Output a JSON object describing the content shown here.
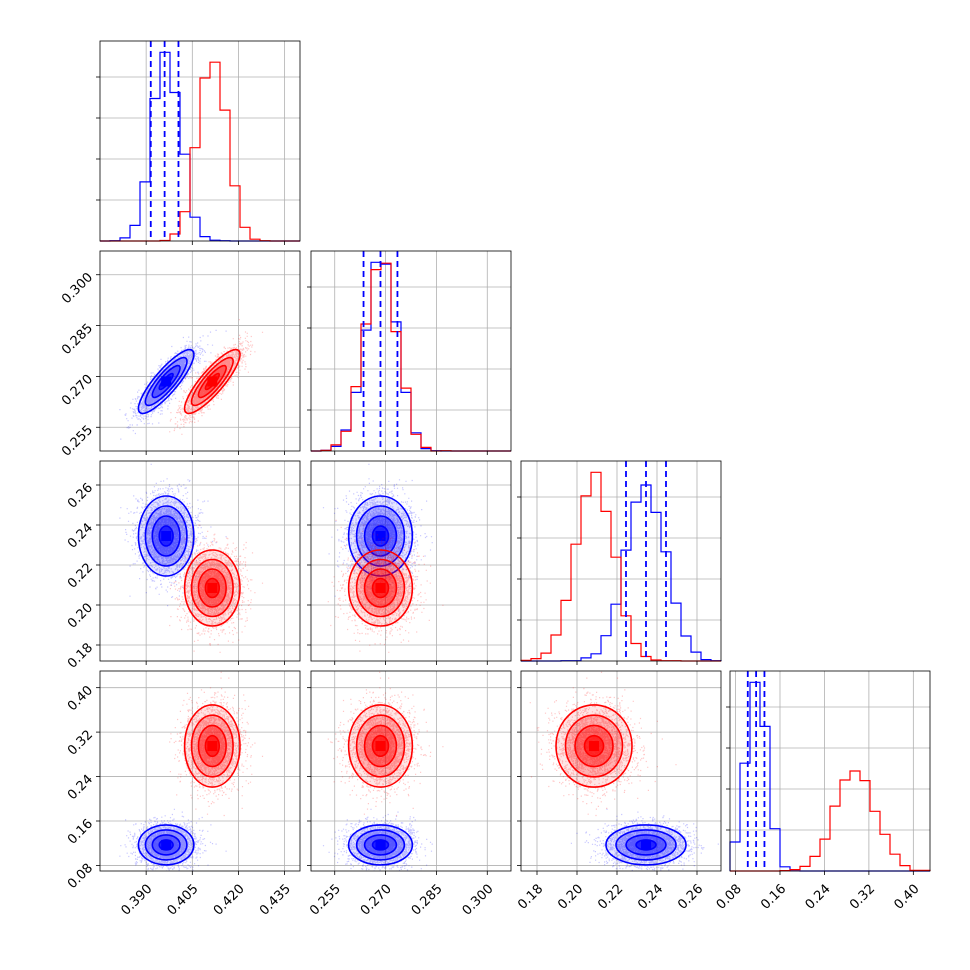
{
  "chart_data": {
    "type": "corner",
    "grid": true,
    "colors": {
      "model_a": "#0000ff",
      "model_b": "#ff0000"
    },
    "parameters": [
      {
        "range": [
          0.375,
          0.44
        ],
        "ticks": [
          0.39,
          0.405,
          0.42,
          0.435
        ],
        "tick_labels": [
          "0.390",
          "0.405",
          "0.420",
          "0.435"
        ]
      },
      {
        "range": [
          0.248,
          0.307
        ],
        "ticks": [
          0.255,
          0.27,
          0.285,
          0.3
        ],
        "tick_labels": [
          "0.255",
          "0.270",
          "0.285",
          "0.300"
        ]
      },
      {
        "range": [
          0.172,
          0.272
        ],
        "ticks": [
          0.18,
          0.2,
          0.22,
          0.24,
          0.26
        ],
        "tick_labels": [
          "0.18",
          "0.20",
          "0.22",
          "0.24",
          "0.26"
        ]
      },
      {
        "range": [
          0.07,
          0.43
        ],
        "ticks": [
          0.08,
          0.16,
          0.24,
          0.32,
          0.4
        ],
        "tick_labels": [
          "0.08",
          "0.16",
          "0.24",
          "0.32",
          "0.40"
        ]
      }
    ],
    "series": [
      {
        "color": "#0000ff",
        "means": [
          0.3965,
          0.2685,
          0.2345,
          0.117
        ],
        "sigmas": [
          0.0045,
          0.0047,
          0.01,
          0.018
        ],
        "quantiles": [
          [
            0.3915,
            0.396,
            0.4005
          ],
          [
            0.2635,
            0.2685,
            0.2735
          ],
          [
            0.2245,
            0.2345,
            0.2445
          ],
          [
            0.102,
            0.117,
            0.132
          ]
        ],
        "correlations": {
          "0-1": 0.85
        }
      },
      {
        "color": "#ff0000",
        "means": [
          0.4115,
          0.2685,
          0.2085,
          0.295
        ],
        "sigmas": [
          0.0045,
          0.0047,
          0.0095,
          0.037
        ],
        "correlations": {
          "0-1": 0.85
        }
      }
    ]
  }
}
